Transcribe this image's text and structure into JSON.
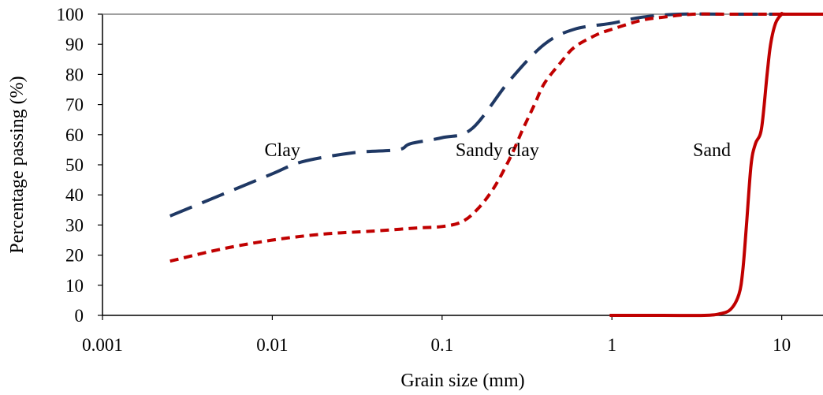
{
  "chart_data": {
    "type": "line",
    "title": "",
    "xlabel": "Grain size (mm)",
    "ylabel": "Percentage passing (%)",
    "x_scale": "log",
    "xlim": [
      0.001,
      17.5
    ],
    "ylim": [
      0,
      100
    ],
    "x_ticks": [
      0.001,
      0.01,
      0.1,
      1,
      10
    ],
    "x_tick_labels": [
      "0.001",
      "0.01",
      "0.1",
      "1",
      "10"
    ],
    "y_ticks": [
      0,
      10,
      20,
      30,
      40,
      50,
      60,
      70,
      80,
      90,
      100
    ],
    "y_tick_labels": [
      "0",
      "10",
      "20",
      "30",
      "40",
      "50",
      "60",
      "70",
      "80",
      "90",
      "100"
    ],
    "grid": false,
    "legend": "none",
    "annotations": [
      {
        "text": "Clay",
        "x": 0.009,
        "y": 55
      },
      {
        "text": "Sandy clay",
        "x": 0.12,
        "y": 55
      },
      {
        "text": "Sand",
        "x": 3.0,
        "y": 55
      }
    ],
    "series": [
      {
        "style": "long-dash",
        "color": "#1f3864",
        "x": [
          0.0025,
          0.005,
          0.01,
          0.015,
          0.03,
          0.055,
          0.065,
          0.1,
          0.15,
          0.25,
          0.4,
          0.6,
          1.0,
          1.5,
          2.5,
          5,
          10,
          17.5
        ],
        "y": [
          33,
          40,
          47,
          51,
          54,
          55,
          57,
          59,
          62,
          78,
          90,
          95,
          97,
          99,
          100,
          100,
          100,
          100
        ]
      },
      {
        "style": "short-dash",
        "color": "#c00000",
        "x": [
          0.0025,
          0.005,
          0.01,
          0.02,
          0.04,
          0.07,
          0.1,
          0.13,
          0.16,
          0.2,
          0.25,
          0.3,
          0.35,
          0.4,
          0.5,
          0.6,
          0.8,
          1.0,
          1.5,
          2.0,
          3.0,
          5,
          10,
          17.5
        ],
        "y": [
          18,
          22,
          25,
          27,
          28,
          29,
          29.5,
          31,
          35,
          42,
          52,
          62,
          70,
          77,
          84,
          89,
          93,
          95,
          98,
          99,
          100,
          100,
          100,
          100
        ]
      },
      {
        "style": "solid",
        "color": "#c00000",
        "x": [
          0.97,
          2.0,
          3.5,
          4.3,
          5.0,
          5.6,
          5.9,
          6.2,
          6.6,
          7.0,
          7.6,
          8.2,
          8.6,
          9.2,
          10.0,
          10.5,
          17.5
        ],
        "y": [
          0,
          0,
          0,
          0.5,
          2,
          7,
          15,
          30,
          50,
          57,
          62,
          80,
          90,
          97,
          100,
          100,
          100
        ]
      }
    ]
  }
}
